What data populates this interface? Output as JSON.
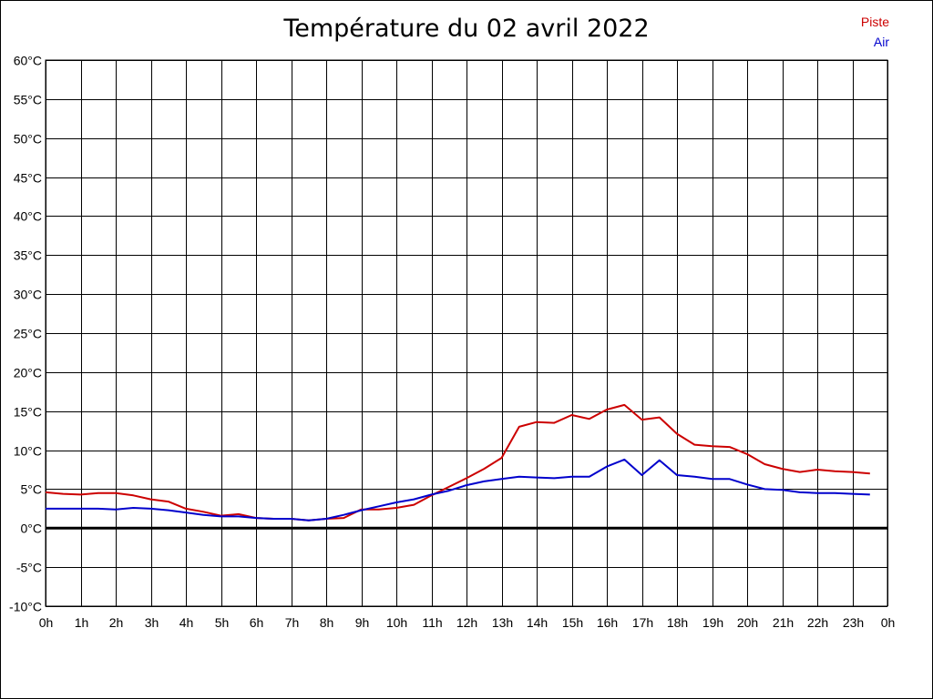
{
  "chart_data": {
    "type": "line",
    "title": "Température du 02 avril 2022",
    "x_tick_labels": [
      "0h",
      "1h",
      "2h",
      "3h",
      "4h",
      "5h",
      "6h",
      "7h",
      "8h",
      "9h",
      "10h",
      "11h",
      "12h",
      "13h",
      "14h",
      "15h",
      "16h",
      "17h",
      "18h",
      "19h",
      "20h",
      "21h",
      "22h",
      "23h",
      "0h"
    ],
    "y_tick_labels": [
      "60°C",
      "55°C",
      "50°C",
      "45°C",
      "40°C",
      "35°C",
      "30°C",
      "25°C",
      "20°C",
      "15°C",
      "10°C",
      "5°C",
      "0°C",
      "-5°C",
      "-10°C"
    ],
    "xlim": [
      0,
      24
    ],
    "ylim": [
      -10,
      60
    ],
    "grid": true,
    "legend_position": "top-right",
    "x": [
      0,
      0.5,
      1,
      1.5,
      2,
      2.5,
      3,
      3.5,
      4,
      4.5,
      5,
      5.5,
      6,
      6.5,
      7,
      7.5,
      8,
      8.5,
      9,
      9.5,
      10,
      10.5,
      11,
      11.5,
      12,
      12.5,
      13,
      13.5,
      14,
      14.5,
      15,
      15.5,
      16,
      16.5,
      17,
      17.5,
      18,
      18.5,
      19,
      19.5,
      20,
      20.5,
      21,
      21.5,
      22,
      22.5,
      23,
      23.5
    ],
    "series": [
      {
        "name": "Piste",
        "color": "#cc0000",
        "values": [
          4.6,
          4.4,
          4.3,
          4.5,
          4.5,
          4.2,
          3.7,
          3.4,
          2.5,
          2.1,
          1.6,
          1.8,
          1.3,
          1.2,
          1.2,
          1.0,
          1.2,
          1.3,
          2.4,
          2.4,
          2.6,
          3.0,
          4.2,
          5.3,
          6.4,
          7.6,
          9.0,
          13.0,
          13.6,
          13.5,
          14.5,
          14.0,
          15.2,
          15.8,
          13.9,
          14.2,
          12.1,
          10.7,
          10.5,
          10.4,
          9.5,
          8.2,
          7.6,
          7.2,
          7.5,
          7.3,
          7.2,
          7.0
        ]
      },
      {
        "name": "Air",
        "color": "#0000cc",
        "values": [
          2.5,
          2.5,
          2.5,
          2.5,
          2.4,
          2.6,
          2.5,
          2.3,
          2.0,
          1.7,
          1.5,
          1.5,
          1.3,
          1.2,
          1.2,
          1.0,
          1.2,
          1.7,
          2.3,
          2.8,
          3.3,
          3.7,
          4.3,
          4.8,
          5.5,
          6.0,
          6.3,
          6.6,
          6.5,
          6.4,
          6.6,
          6.6,
          7.9,
          8.8,
          6.8,
          8.7,
          6.8,
          6.6,
          6.3,
          6.3,
          5.6,
          5.0,
          4.9,
          4.6,
          4.5,
          4.5,
          4.4,
          4.3
        ]
      }
    ]
  }
}
